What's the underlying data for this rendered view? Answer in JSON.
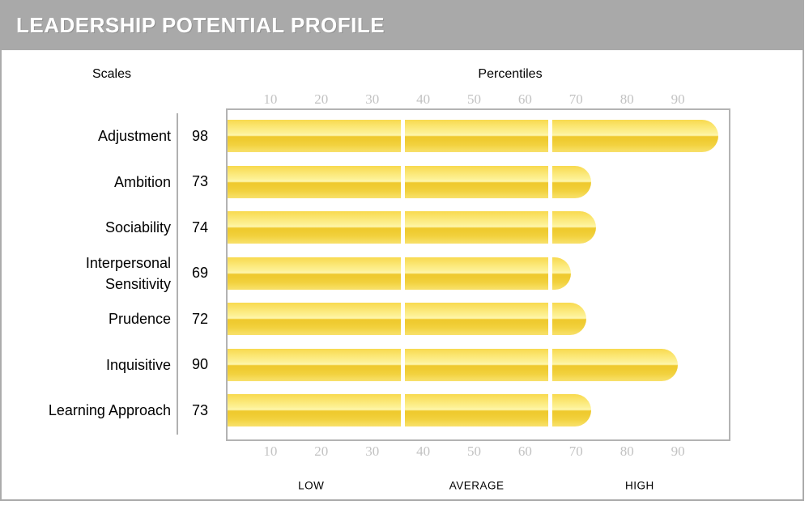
{
  "window": {
    "title": "LEADERSHIP POTENTIAL PROFILE"
  },
  "axis_headers": {
    "left": "Scales",
    "top": "Percentiles"
  },
  "chart_data": {
    "type": "bar",
    "orientation": "horizontal",
    "title": "LEADERSHIP POTENTIAL PROFILE",
    "xlabel": "Percentiles",
    "ylabel": "Scales",
    "xlim": [
      0,
      100
    ],
    "xticks": [
      10,
      20,
      30,
      40,
      50,
      60,
      70,
      80,
      90
    ],
    "categories": [
      "Adjustment",
      "Ambition",
      "Sociability",
      "Interpersonal Sensitivity",
      "Prudence",
      "Inquisitive",
      "Learning Approach"
    ],
    "values": [
      98,
      73,
      74,
      69,
      72,
      90,
      73
    ],
    "bands": [
      {
        "label": "LOW",
        "from": 0,
        "to": 36
      },
      {
        "label": "AVERAGE",
        "from": 36,
        "to": 65
      },
      {
        "label": "HIGH",
        "from": 65,
        "to": 100
      }
    ],
    "grid": false,
    "legend": false,
    "tick_rows": [
      "top",
      "bottom"
    ],
    "bar_segment_gaps_at": [
      36,
      65
    ]
  },
  "colors": {
    "header_bg": "#A9A9A9",
    "header_text": "#FFFFFF",
    "frame_border": "#ABABAB",
    "plot_border": "#B3B3B3",
    "separator_line": "#B0B0B0",
    "tick_text": "#C2C2C2",
    "label_text": "#000000",
    "bar_main": "#F2D23F",
    "bar_highlight": "#FEF6AC"
  }
}
